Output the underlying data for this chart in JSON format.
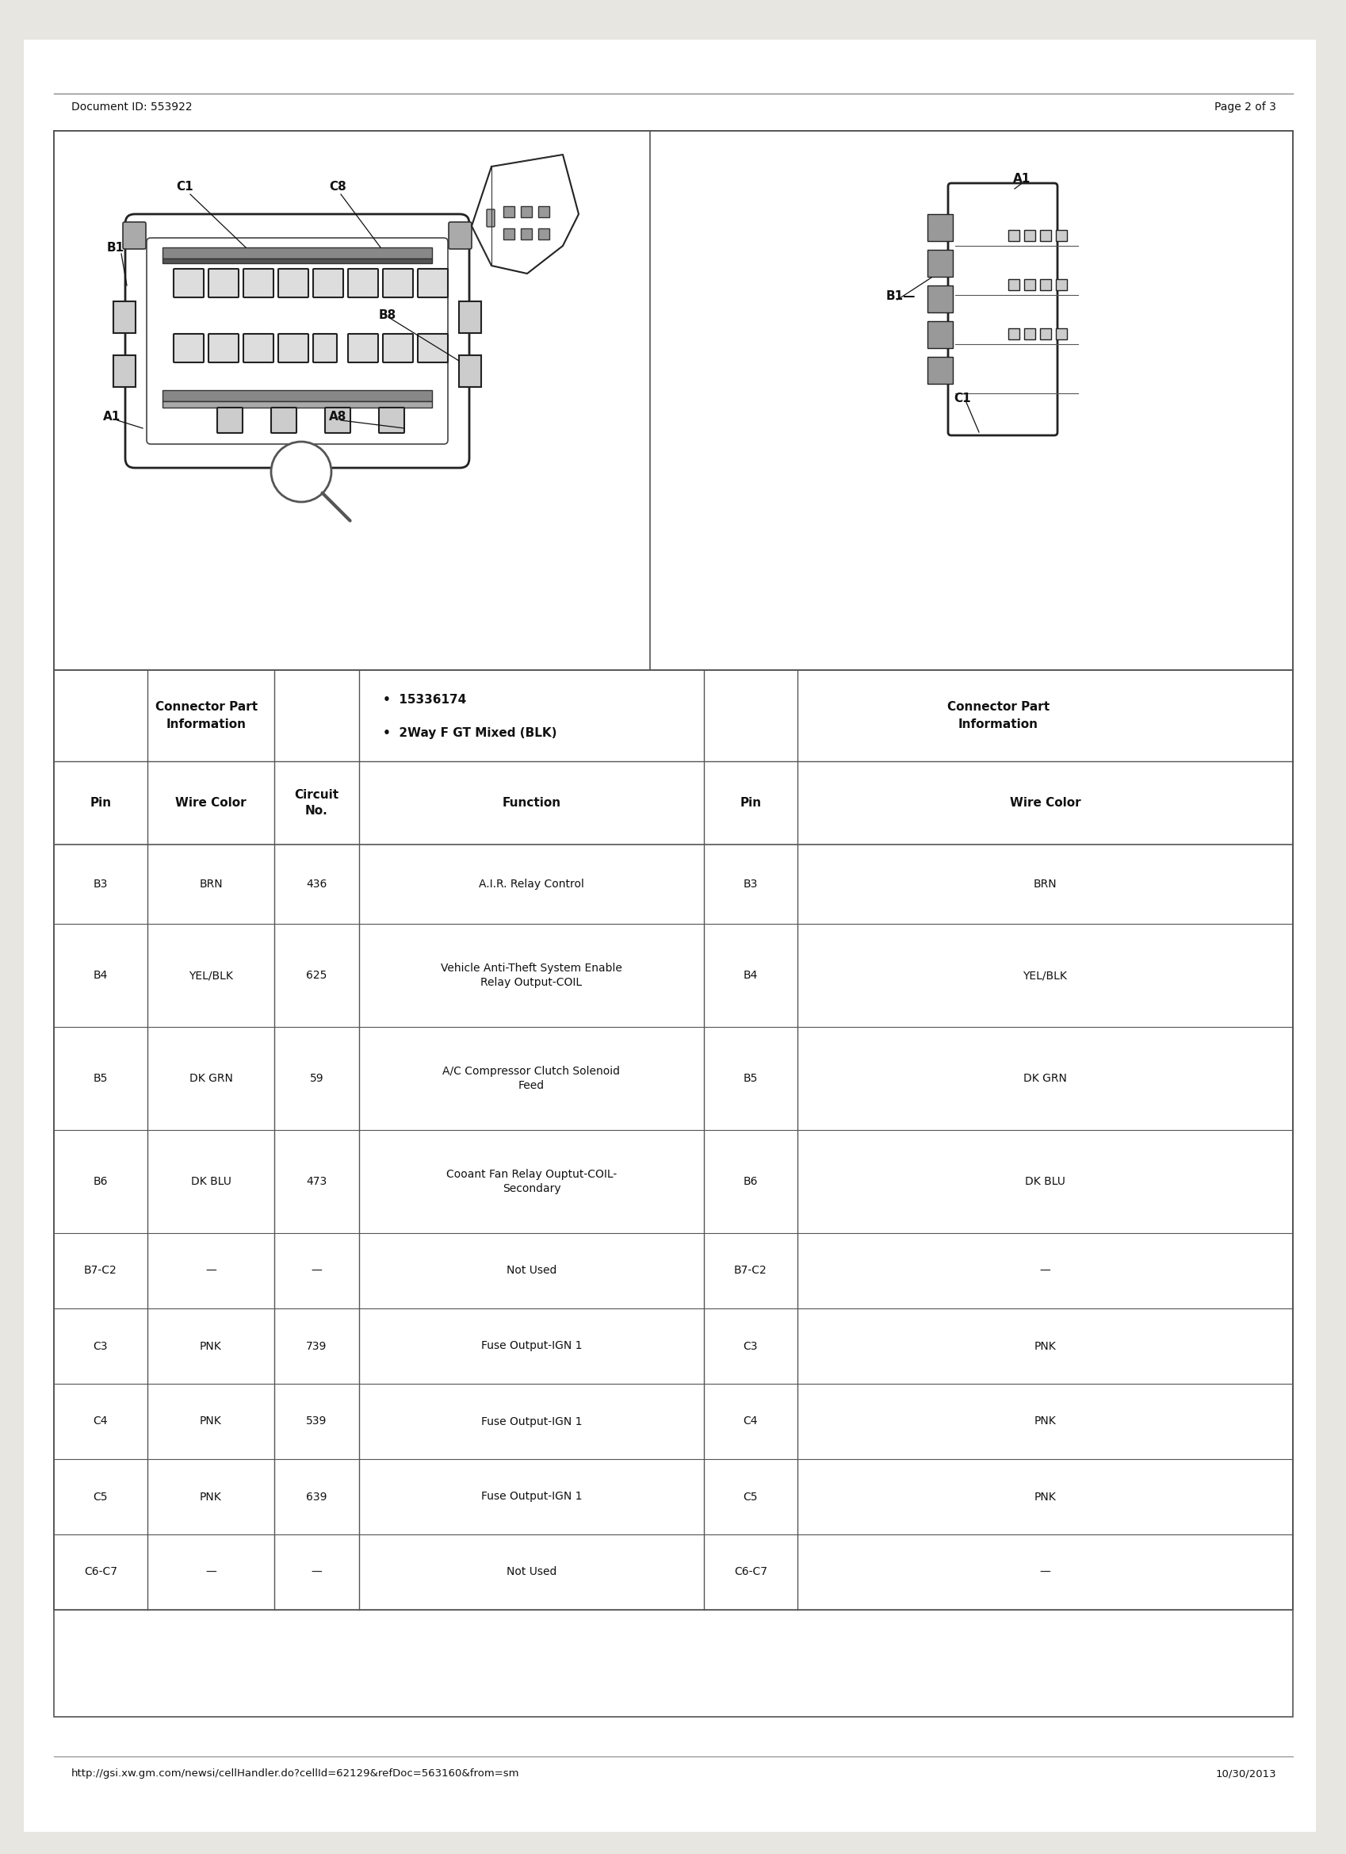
{
  "doc_id": "Document ID: 553922",
  "page_info": "Page 2 of 3",
  "footer_url": "http://gsi.xw.gm.com/newsi/cellHandler.do?cellId=62129&refDoc=563160&from=sm",
  "footer_date": "10/30/2013",
  "table_rows": [
    [
      "B3",
      "BRN",
      "436",
      "A.I.R. Relay Control",
      "B3",
      "BRN"
    ],
    [
      "B4",
      "YEL/BLK",
      "625",
      "Vehicle Anti-Theft System Enable\nRelay Output-COIL",
      "B4",
      "YEL/BLK"
    ],
    [
      "B5",
      "DK GRN",
      "59",
      "A/C Compressor Clutch Solenoid\nFeed",
      "B5",
      "DK GRN"
    ],
    [
      "B6",
      "DK BLU",
      "473",
      "Cooant Fan Relay Ouptut-COIL-\nSecondary",
      "B6",
      "DK BLU"
    ],
    [
      "B7-C2",
      "—",
      "—",
      "Not Used",
      "B7-C2",
      "—"
    ],
    [
      "C3",
      "PNK",
      "739",
      "Fuse Output-IGN 1",
      "C3",
      "PNK"
    ],
    [
      "C4",
      "PNK",
      "539",
      "Fuse Output-IGN 1",
      "C4",
      "PNK"
    ],
    [
      "C5",
      "PNK",
      "639",
      "Fuse Output-IGN 1",
      "C5",
      "PNK"
    ],
    [
      "C6-C7",
      "—",
      "—",
      "Not Used",
      "C6-C7",
      "—"
    ]
  ],
  "bg_color": "#e8e6e0",
  "text_color": "#111111"
}
